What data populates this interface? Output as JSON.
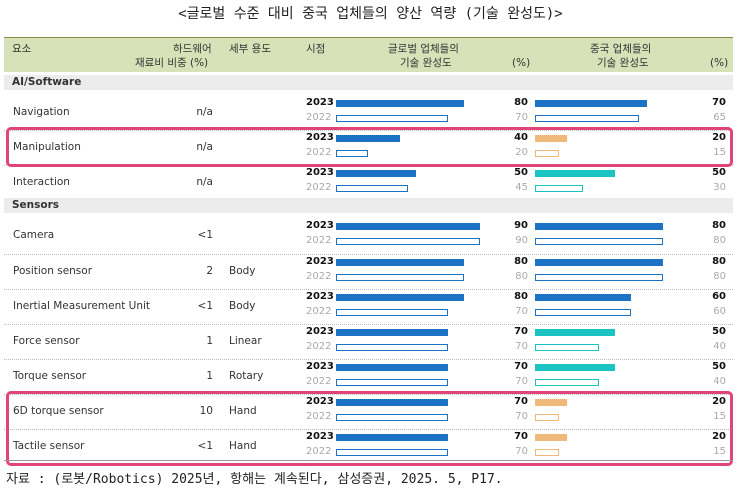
{
  "title": "<글로벌 수준 대비 중국 업체들의 양산 역량 (기술 완성도)>",
  "source": "자료 : (로봇/Robotics) 2025년, 항해는 계속된다, 삼성증권, 2025. 5, P17.",
  "headers": {
    "component": "요소",
    "hw_cost_line1": "하드웨어",
    "hw_cost_line2": "재료비 비중 (%)",
    "usage": "세부 용도",
    "period": "시점",
    "global_line1": "글로벌 업체들의",
    "global_line2": "기술 완성도",
    "global_pct": "(%)",
    "china_line1": "중국 업체들의",
    "china_line2": "기술 완성도",
    "china_pct": "(%)"
  },
  "colors": {
    "blue": "#1c72c4",
    "teal": "#1cc3c3",
    "orange": "#f0b87a",
    "highlight": "#e0447a",
    "header_band": "#d8e2b8"
  },
  "chart_data": {
    "type": "bar",
    "title": "<글로벌 수준 대비 중국 업체들의 양산 역량 (기술 완성도)>",
    "series_names": [
      "글로벌 업체들의 기술 완성도",
      "중국 업체들의 기술 완성도"
    ],
    "periods": [
      "2023",
      "2022"
    ],
    "xlim": [
      0,
      100
    ],
    "sections": [
      {
        "name": "AI/Software",
        "rows": [
          {
            "name": "Navigation",
            "hw_cost": "n/a",
            "usage": "",
            "global": [
              80,
              70
            ],
            "china": [
              70,
              65
            ],
            "color": "blue",
            "highlight": false
          },
          {
            "name": "Manipulation",
            "hw_cost": "n/a",
            "usage": "",
            "global": [
              40,
              20
            ],
            "china": [
              20,
              15
            ],
            "color": "orange",
            "highlight": true
          },
          {
            "name": "Interaction",
            "hw_cost": "n/a",
            "usage": "",
            "global": [
              50,
              45
            ],
            "china": [
              50,
              30
            ],
            "color": "teal",
            "highlight": false
          }
        ]
      },
      {
        "name": "Sensors",
        "rows": [
          {
            "name": "Camera",
            "hw_cost": "<1",
            "usage": "",
            "global": [
              90,
              90
            ],
            "china": [
              80,
              80
            ],
            "color": "blue",
            "highlight": false
          },
          {
            "name": "Position sensor",
            "hw_cost": "2",
            "usage": "Body",
            "global": [
              80,
              80
            ],
            "china": [
              80,
              80
            ],
            "color": "blue",
            "highlight": false
          },
          {
            "name": "Inertial Measurement Unit",
            "hw_cost": "<1",
            "usage": "Body",
            "global": [
              80,
              70
            ],
            "china": [
              60,
              60
            ],
            "color": "blue",
            "highlight": false
          },
          {
            "name": "Force sensor",
            "hw_cost": "1",
            "usage": "Linear",
            "global": [
              70,
              70
            ],
            "china": [
              50,
              40
            ],
            "color": "teal",
            "highlight": false
          },
          {
            "name": "Torque sensor",
            "hw_cost": "1",
            "usage": "Rotary",
            "global": [
              70,
              70
            ],
            "china": [
              50,
              40
            ],
            "color": "teal",
            "highlight": false
          },
          {
            "name": "6D torque sensor",
            "hw_cost": "10",
            "usage": "Hand",
            "global": [
              70,
              70
            ],
            "china": [
              20,
              15
            ],
            "color": "orange",
            "highlight": true
          },
          {
            "name": "Tactile sensor",
            "hw_cost": "<1",
            "usage": "Hand",
            "global": [
              70,
              70
            ],
            "china": [
              20,
              15
            ],
            "color": "orange",
            "highlight": true
          }
        ]
      }
    ]
  }
}
